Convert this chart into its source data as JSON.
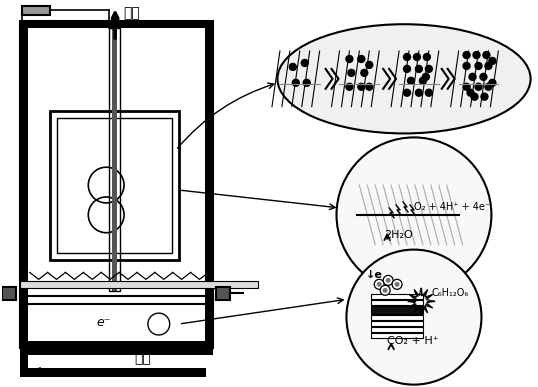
{
  "bg_color": "#ffffff",
  "line_color": "#000000",
  "gray_color": "#888888",
  "light_gray": "#cccccc",
  "dark_gray": "#444444",
  "text_color": "#000000",
  "label_out": "出水",
  "label_in": "进水",
  "label_e": "e⁻",
  "label_o2": "O₂ + 4H⁺ + 4e⁻",
  "label_h2o": "2H₂O",
  "label_c6h12o6": "C₆H₁₂O₆",
  "label_co2": "CO₂ + H⁺",
  "label_e_anode": "↓e"
}
